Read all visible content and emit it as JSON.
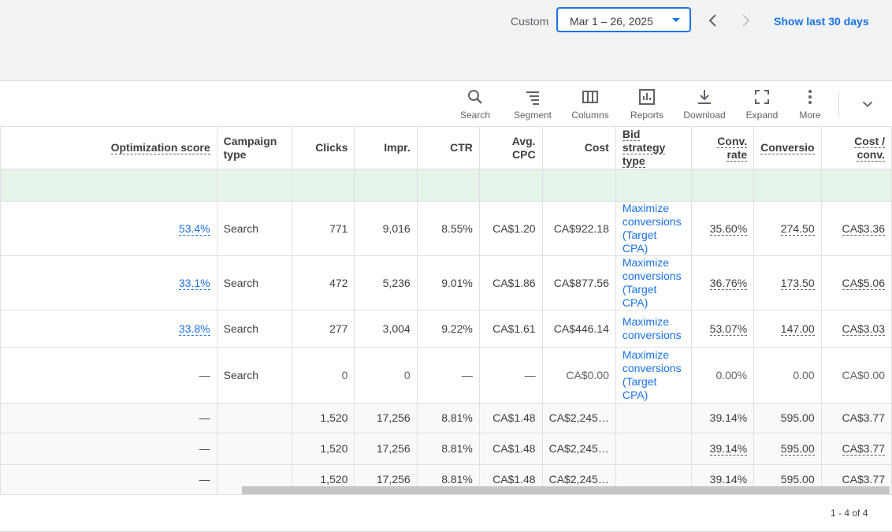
{
  "datebar": {
    "custom_label": "Custom",
    "date_range": "Mar 1 – 26, 2025",
    "show_last": "Show last 30 days"
  },
  "toolbar": {
    "search": "Search",
    "segment": "Segment",
    "columns": "Columns",
    "reports": "Reports",
    "download": "Download",
    "expand": "Expand",
    "more": "More"
  },
  "table": {
    "headers": {
      "optimization_score": "Optimization score",
      "campaign_type": "Campaign type",
      "clicks": "Clicks",
      "impr": "Impr.",
      "ctr": "CTR",
      "avg_cpc": "Avg. CPC",
      "cost": "Cost",
      "bid_strategy": "Bid strategy type",
      "conv_rate": "Conv. rate",
      "conversions": "Conversio",
      "cost_conv": "Cost / conv."
    },
    "rows": [
      {
        "opt": "53.4%",
        "type": "Search",
        "clicks": "771",
        "impr": "9,016",
        "ctr": "8.55%",
        "cpc": "CA$1.20",
        "cost": "CA$922.18",
        "bid": "Maximize conversions (Target CPA)",
        "rate": "35.60%",
        "conv": "274.50",
        "cpconv": "CA$3.36"
      },
      {
        "opt": "33.1%",
        "type": "Search",
        "clicks": "472",
        "impr": "5,236",
        "ctr": "9.01%",
        "cpc": "CA$1.86",
        "cost": "CA$877.56",
        "bid": "Maximize conversions (Target CPA)",
        "rate": "36.76%",
        "conv": "173.50",
        "cpconv": "CA$5.06"
      },
      {
        "opt": "33.8%",
        "type": "Search",
        "clicks": "277",
        "impr": "3,004",
        "ctr": "9.22%",
        "cpc": "CA$1.61",
        "cost": "CA$446.14",
        "bid": "Maximize conversions",
        "rate": "53.07%",
        "conv": "147.00",
        "cpconv": "CA$3.03"
      },
      {
        "opt": "—",
        "type": "Search",
        "clicks": "0",
        "impr": "0",
        "ctr": "—",
        "cpc": "—",
        "cost": "CA$0.00",
        "bid": "Maximize conversions (Target CPA)",
        "rate": "0.00%",
        "conv": "0.00",
        "cpconv": "CA$0.00"
      }
    ],
    "totals": [
      {
        "opt": "—",
        "clicks": "1,520",
        "impr": "17,256",
        "ctr": "8.81%",
        "cpc": "CA$1.48",
        "cost": "CA$2,245…",
        "rate": "39.14%",
        "conv": "595.00",
        "cpconv": "CA$3.77"
      },
      {
        "opt": "—",
        "clicks": "1,520",
        "impr": "17,256",
        "ctr": "8.81%",
        "cpc": "CA$1.48",
        "cost": "CA$2,245…",
        "rate": "39.14%",
        "conv": "595.00",
        "cpconv": "CA$3.77"
      },
      {
        "opt": "—",
        "clicks": "1,520",
        "impr": "17,256",
        "ctr": "8.81%",
        "cpc": "CA$1.48",
        "cost": "CA$2,245…",
        "rate": "39.14%",
        "conv": "595.00",
        "cpconv": "CA$3.77"
      }
    ]
  },
  "pager": "1 - 4 of 4"
}
